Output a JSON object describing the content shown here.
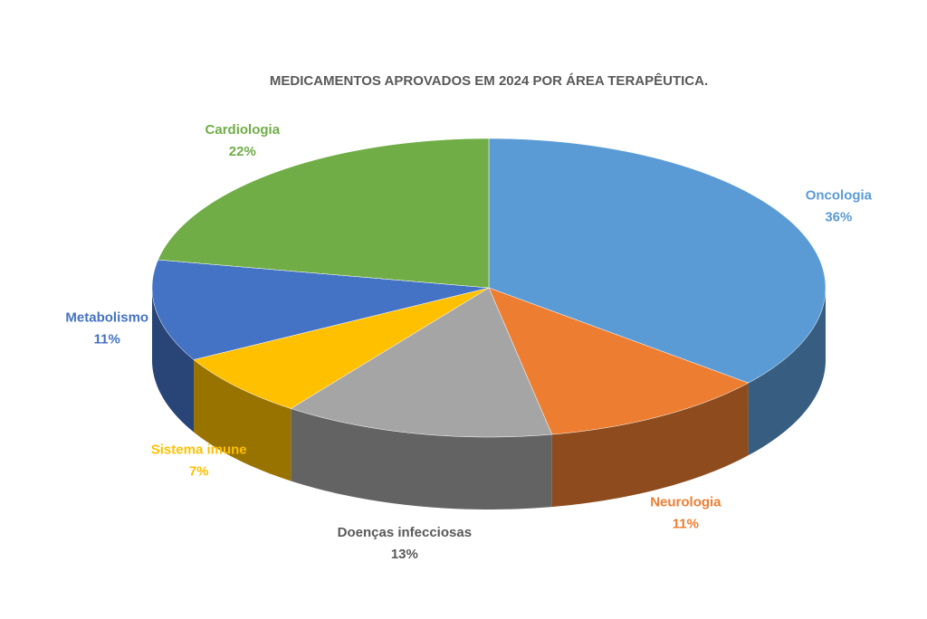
{
  "chart_data": {
    "type": "pie",
    "title": "MEDICAMENTOS  APROVADOS EM 2024 POR ÁREA TERAPÊUTICA.",
    "categories": [
      "Oncologia",
      "Neurologia",
      "Doenças infecciosas",
      "Sistema imune",
      "Metabolismo",
      "Cardiologia"
    ],
    "values": [
      36,
      11,
      13,
      7,
      11,
      22
    ],
    "value_labels": [
      "36%",
      "11%",
      "13%",
      "7%",
      "11%",
      "22%"
    ],
    "colors": [
      "#5b9bd5",
      "#ed7d31",
      "#a5a5a5",
      "#ffc000",
      "#4472c4",
      "#70ad47"
    ]
  }
}
